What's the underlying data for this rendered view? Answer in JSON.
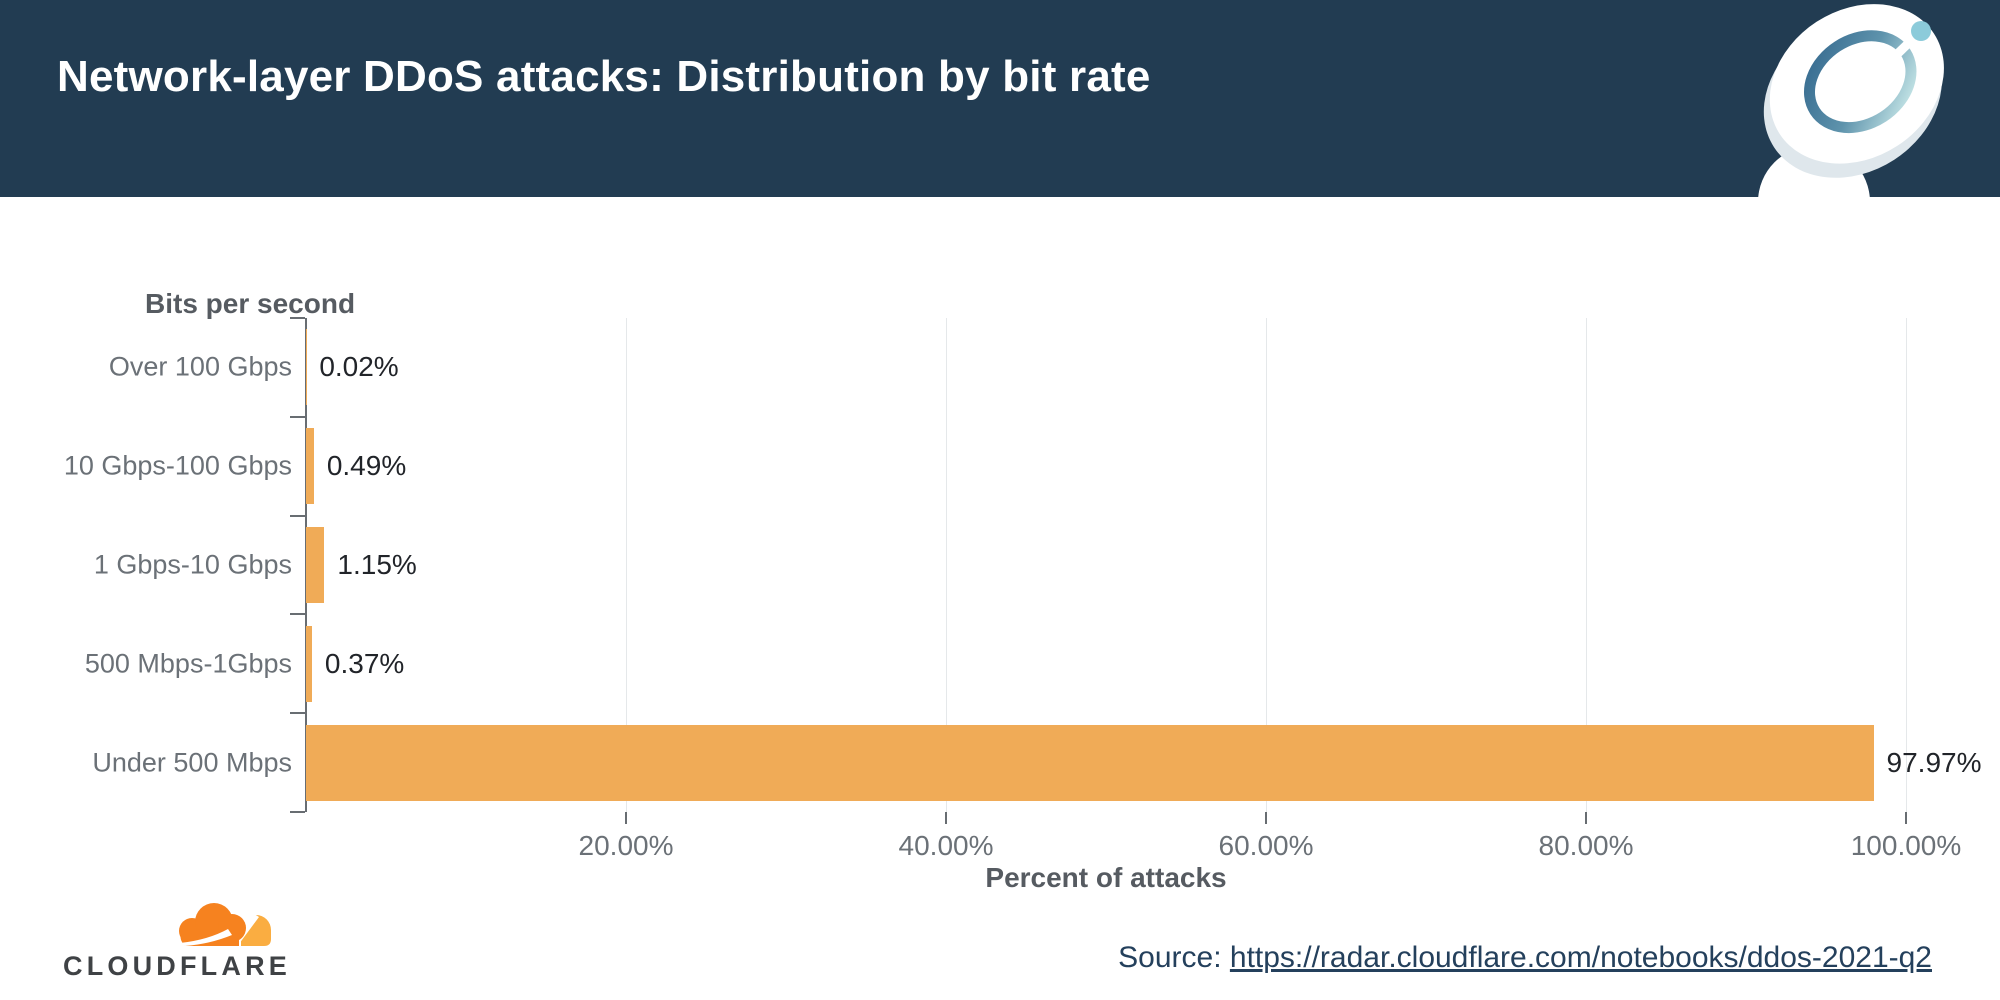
{
  "header": {
    "title": "Network-layer DDoS attacks: Distribution by bit rate",
    "icon": "satellite-dish-icon"
  },
  "chart_data": {
    "type": "bar",
    "orientation": "horizontal",
    "categories": [
      "Over 100 Gbps",
      "10 Gbps-100 Gbps",
      "1 Gbps-10 Gbps",
      "500 Mbps-1Gbps",
      "Under 500 Mbps"
    ],
    "values": [
      0.02,
      0.49,
      1.15,
      0.37,
      97.97
    ],
    "value_labels": [
      "0.02%",
      "0.49%",
      "1.15%",
      "0.37%",
      "97.97%"
    ],
    "xlabel": "Percent of attacks",
    "ylabel": "Bits per second",
    "xlim": [
      0,
      100
    ],
    "x_ticks": [
      20,
      40,
      60,
      80,
      100
    ],
    "x_tick_labels": [
      "20.00%",
      "40.00%",
      "60.00%",
      "80.00%",
      "100.00%"
    ],
    "grid": true,
    "legend": "none",
    "bar_color": "#F0AB57"
  },
  "footer": {
    "logo_wordmark": "CLOUDFLARE",
    "source_prefix": "Source: ",
    "source_link_text": "https://radar.cloudflare.com/notebooks/ddos-2021-q2"
  },
  "colors": {
    "header_bg": "#223C52",
    "bar": "#F0AB57",
    "gridline": "#E5E8EA",
    "axis": "#686D72",
    "label_gray": "#6B7177",
    "axis_title_gray": "#565B61",
    "value_text": "#212429",
    "source_navy": "#24405C",
    "cloud_orange": "#F6821F",
    "cloud_light_orange": "#FAAD41"
  }
}
